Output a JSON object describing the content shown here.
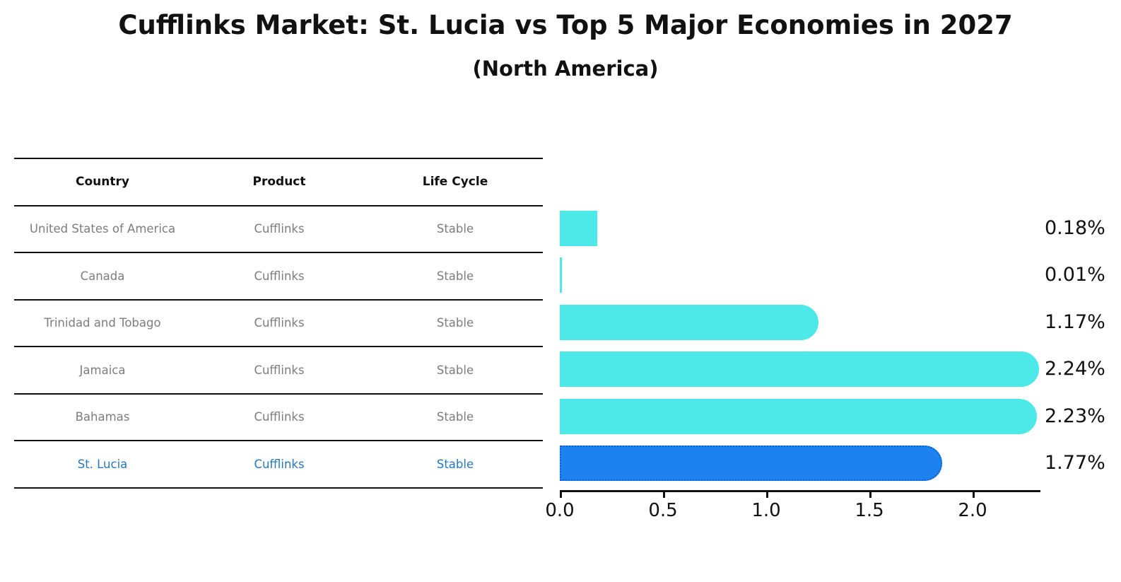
{
  "title": "Cufflinks Market: St. Lucia vs Top 5 Major Economies in 2027",
  "subtitle": "(North America)",
  "table": {
    "headers": [
      "Country",
      "Product",
      "Life Cycle"
    ],
    "rows": [
      {
        "country": "United States of America",
        "product": "Cufflinks",
        "life_cycle": "Stable",
        "value": 0.18,
        "value_label": "0.18%",
        "highlight": false
      },
      {
        "country": "Canada",
        "product": "Cufflinks",
        "life_cycle": "Stable",
        "value": 0.01,
        "value_label": "0.01%",
        "highlight": false
      },
      {
        "country": "Trinidad and Tobago",
        "product": "Cufflinks",
        "life_cycle": "Stable",
        "value": 1.17,
        "value_label": "1.17%",
        "highlight": false
      },
      {
        "country": "Jamaica",
        "product": "Cufflinks",
        "life_cycle": "Stable",
        "value": 2.24,
        "value_label": "2.24%",
        "highlight": false
      },
      {
        "country": "Bahamas",
        "product": "Cufflinks",
        "life_cycle": "Stable",
        "value": 2.23,
        "value_label": "2.23%",
        "highlight": false
      },
      {
        "country": "St. Lucia",
        "product": "Cufflinks",
        "life_cycle": "Stable",
        "value": 1.77,
        "value_label": "1.77%",
        "highlight": true
      }
    ]
  },
  "axis": {
    "ticks": [
      {
        "label": "0.0",
        "value": 0.0
      },
      {
        "label": "0.5",
        "value": 0.5
      },
      {
        "label": "1.0",
        "value": 1.0
      },
      {
        "label": "1.5",
        "value": 1.5
      },
      {
        "label": "2.0",
        "value": 2.0
      }
    ],
    "xlim": [
      0,
      2.33
    ]
  },
  "colors": {
    "bar": "#4de8e8",
    "highlight_bar": "#1d82f0",
    "highlight_border": "#0b5fd0",
    "highlight_text": "#2878be",
    "row_text": "#7d7d7d",
    "header_text": "#111111",
    "axis": "#111111"
  },
  "chart_data": {
    "type": "bar",
    "orientation": "horizontal",
    "title": "Cufflinks Market: St. Lucia vs Top 5 Major Economies in 2027",
    "subtitle": "(North America)",
    "categories": [
      "United States of America",
      "Canada",
      "Trinidad and Tobago",
      "Jamaica",
      "Bahamas",
      "St. Lucia"
    ],
    "values": [
      0.18,
      0.01,
      1.17,
      2.24,
      2.23,
      1.77
    ],
    "data_labels": [
      "0.18%",
      "0.01%",
      "1.17%",
      "2.24%",
      "2.23%",
      "1.77%"
    ],
    "x_ticks": [
      0.0,
      0.5,
      1.0,
      1.5,
      2.0
    ],
    "xlim": [
      0,
      2.33
    ],
    "grid": false,
    "legend": false,
    "highlight_category": "St. Lucia",
    "bar_color": "#4de8e8",
    "highlight_bar_color": "#1d82f0"
  }
}
